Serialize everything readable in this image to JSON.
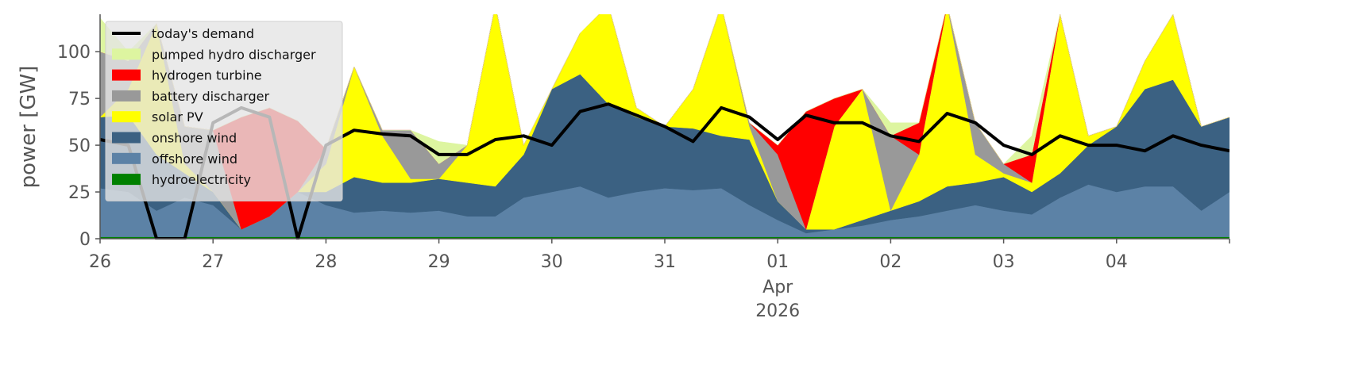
{
  "chart_data": {
    "type": "stacked_area",
    "ylabel": "power [GW]",
    "x_month_label": "Apr",
    "x_year_label": "2026",
    "x": [
      "2026-03-26T00:00",
      "2026-03-26T06:00",
      "2026-03-26T12:00",
      "2026-03-26T18:00",
      "2026-03-27T00:00",
      "2026-03-27T06:00",
      "2026-03-27T12:00",
      "2026-03-27T18:00",
      "2026-03-28T00:00",
      "2026-03-28T06:00",
      "2026-03-28T12:00",
      "2026-03-28T18:00",
      "2026-03-29T00:00",
      "2026-03-29T06:00",
      "2026-03-29T12:00",
      "2026-03-29T18:00",
      "2026-03-30T00:00",
      "2026-03-30T06:00",
      "2026-03-30T12:00",
      "2026-03-30T18:00",
      "2026-03-31T00:00",
      "2026-03-31T06:00",
      "2026-03-31T12:00",
      "2026-03-31T18:00",
      "2026-04-01T00:00",
      "2026-04-01T06:00",
      "2026-04-01T12:00",
      "2026-04-01T18:00",
      "2026-04-02T00:00",
      "2026-04-02T06:00",
      "2026-04-02T12:00",
      "2026-04-02T18:00",
      "2026-04-03T00:00",
      "2026-04-03T06:00",
      "2026-04-03T12:00",
      "2026-04-03T18:00",
      "2026-04-04T00:00",
      "2026-04-04T06:00",
      "2026-04-04T12:00",
      "2026-04-04T18:00",
      "2026-04-05T00:00"
    ],
    "xlim": [
      "2026-03-26T00:00",
      "2026-04-05T00:00"
    ],
    "xticks": [
      {
        "value": "2026-03-26T00:00",
        "label": "26"
      },
      {
        "value": "2026-03-27T00:00",
        "label": "27"
      },
      {
        "value": "2026-03-28T00:00",
        "label": "28"
      },
      {
        "value": "2026-03-29T00:00",
        "label": "29"
      },
      {
        "value": "2026-03-30T00:00",
        "label": "30"
      },
      {
        "value": "2026-03-31T00:00",
        "label": "31"
      },
      {
        "value": "2026-04-01T00:00",
        "label": "01"
      },
      {
        "value": "2026-04-02T00:00",
        "label": "02"
      },
      {
        "value": "2026-04-03T00:00",
        "label": "03"
      },
      {
        "value": "2026-04-04T00:00",
        "label": "04"
      }
    ],
    "ylim": [
      0,
      120
    ],
    "yticks": [
      0,
      25,
      50,
      75,
      100
    ],
    "legend": "upper left",
    "series": [
      {
        "name": "hydroelectricity",
        "color": "#008000",
        "values": [
          1,
          1,
          1,
          1,
          1,
          1,
          1,
          1,
          1,
          1,
          1,
          1,
          1,
          1,
          1,
          1,
          1,
          1,
          1,
          1,
          1,
          1,
          1,
          1,
          1,
          1,
          1,
          1,
          1,
          1,
          1,
          1,
          1,
          1,
          1,
          1,
          1,
          1,
          1,
          1,
          1
        ]
      },
      {
        "name": "offshore wind",
        "color": "#5c82a6",
        "values": [
          26,
          24,
          14,
          21,
          17,
          4,
          11,
          24,
          17,
          13,
          14,
          13,
          14,
          11,
          11,
          21,
          24,
          27,
          21,
          24,
          26,
          25,
          26,
          17,
          9,
          2,
          4,
          6,
          9,
          11,
          14,
          17,
          14,
          12,
          21,
          28,
          24,
          27,
          27,
          14,
          24
        ]
      },
      {
        "name": "onshore wind",
        "color": "#3b6182",
        "values": [
          38,
          41,
          30,
          13,
          7,
          0,
          0,
          0,
          7,
          19,
          15,
          16,
          17,
          18,
          16,
          23,
          55,
          60,
          50,
          40,
          33,
          33,
          28,
          35,
          10,
          2,
          0,
          3,
          5,
          8,
          13,
          12,
          18,
          12,
          13,
          21,
          35,
          52,
          57,
          45,
          40
        ]
      },
      {
        "name": "solar PV",
        "color": "#ffff00",
        "values": [
          0,
          14,
          70,
          5,
          0,
          0,
          0,
          0,
          15,
          59,
          25,
          2,
          0,
          20,
          97,
          5,
          0,
          22,
          53,
          5,
          0,
          21,
          70,
          7,
          0,
          0,
          55,
          70,
          0,
          25,
          97,
          15,
          2,
          5,
          85,
          5,
          0,
          15,
          35,
          0,
          0
        ]
      },
      {
        "name": "battery discharger",
        "color": "#999999",
        "values": [
          35,
          15,
          0,
          20,
          33,
          0,
          0,
          0,
          8,
          0,
          3,
          26,
          8,
          0,
          0,
          0,
          0,
          0,
          0,
          0,
          0,
          0,
          0,
          2,
          25,
          0,
          0,
          0,
          40,
          0,
          0,
          17,
          5,
          0,
          0,
          0,
          0,
          0,
          0,
          0,
          0
        ]
      },
      {
        "name": "hydrogen turbine",
        "color": "#ff0000",
        "values": [
          0,
          0,
          0,
          0,
          0,
          60,
          58,
          38,
          0,
          0,
          0,
          0,
          0,
          0,
          0,
          0,
          0,
          0,
          0,
          0,
          0,
          0,
          0,
          0,
          5,
          63,
          15,
          0,
          0,
          17,
          0,
          0,
          0,
          15,
          0,
          0,
          0,
          0,
          0,
          0,
          0
        ]
      },
      {
        "name": "pumped hydro discharger",
        "color": "#ddf5a0",
        "values": [
          18,
          5,
          0,
          0,
          0,
          0,
          0,
          0,
          0,
          0,
          0,
          0,
          12,
          0,
          0,
          0,
          0,
          0,
          0,
          0,
          0,
          0,
          0,
          0,
          0,
          0,
          0,
          0,
          7,
          0,
          0,
          0,
          0,
          10,
          0,
          0,
          0,
          0,
          0,
          0,
          0
        ]
      }
    ],
    "demand": {
      "name": "today's demand",
      "color": "#000000",
      "values": [
        53,
        50,
        0,
        0,
        62,
        70,
        65,
        0,
        50,
        58,
        56,
        55,
        45,
        45,
        53,
        55,
        50,
        68,
        72,
        66,
        60,
        52,
        70,
        65,
        53,
        66,
        62,
        62,
        55,
        52,
        67,
        62,
        50,
        45,
        55,
        50,
        50,
        47,
        55,
        50,
        47
      ]
    }
  }
}
